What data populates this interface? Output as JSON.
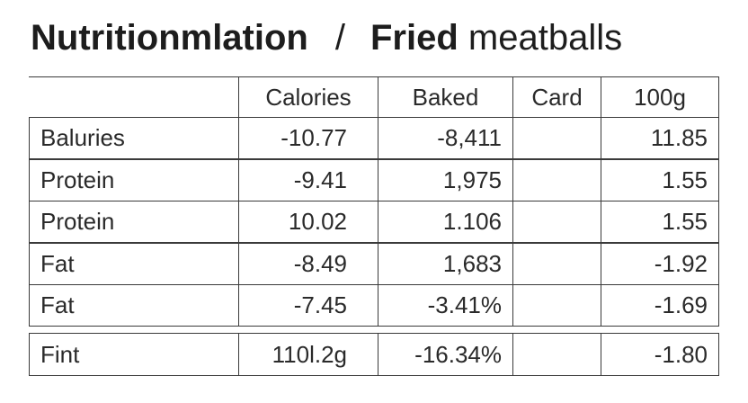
{
  "title": {
    "bold_1": "Nutritionmlation",
    "separator": "/",
    "bold_2": "Fried",
    "rest": "meatballs"
  },
  "table": {
    "header": [
      "Calories",
      "Baked",
      "Card",
      "100g"
    ],
    "rows": [
      [
        "Baluries",
        "-10.77",
        "-8,411",
        "",
        "11.85"
      ],
      [
        "Protein",
        "-9.41",
        "1,975",
        "",
        "1.55"
      ],
      [
        "Protein",
        "10.02",
        "1.106",
        "",
        "1.55"
      ],
      [
        "Fat",
        "-8.49",
        "1,683",
        "",
        "-1.92"
      ],
      [
        "Fat",
        "-7.45",
        "-3.41%",
        "",
        "-1.69"
      ],
      [
        "Fint",
        "110l.2g",
        "-16.34%",
        "",
        "-1.80"
      ]
    ]
  }
}
